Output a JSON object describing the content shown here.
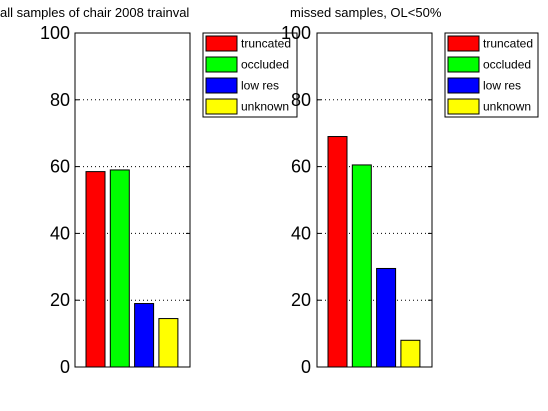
{
  "chart_data": [
    {
      "type": "bar",
      "title": "all samples of chair 2008 trainval",
      "categories": [
        "truncated",
        "occluded",
        "low res",
        "unknown"
      ],
      "values": [
        58.5,
        59,
        19,
        14.5
      ],
      "colors": [
        "#ff0000",
        "#00ff00",
        "#0000ff",
        "#ffff00"
      ],
      "ylim": [
        0,
        100
      ],
      "yticks": [
        "0",
        "20",
        "40",
        "60",
        "80",
        "100"
      ],
      "grid": true,
      "legend": {
        "placement": "outside-top-right",
        "entries": [
          {
            "label": "truncated",
            "color": "#ff0000"
          },
          {
            "label": "occluded",
            "color": "#00ff00"
          },
          {
            "label": "low res",
            "color": "#0000ff"
          },
          {
            "label": "unknown",
            "color": "#ffff00"
          }
        ]
      }
    },
    {
      "type": "bar",
      "title": "missed samples,  OL<50%",
      "categories": [
        "truncated",
        "occluded",
        "low res",
        "unknown"
      ],
      "values": [
        69,
        60.5,
        29.5,
        8
      ],
      "colors": [
        "#ff0000",
        "#00ff00",
        "#0000ff",
        "#ffff00"
      ],
      "ylim": [
        0,
        100
      ],
      "yticks": [
        "0",
        "20",
        "40",
        "60",
        "80",
        "100"
      ],
      "grid": true,
      "legend": {
        "placement": "outside-top-right",
        "entries": [
          {
            "label": "truncated",
            "color": "#ff0000"
          },
          {
            "label": "occluded",
            "color": "#00ff00"
          },
          {
            "label": "low res",
            "color": "#0000ff"
          },
          {
            "label": "unknown",
            "color": "#ffff00"
          }
        ]
      }
    }
  ]
}
